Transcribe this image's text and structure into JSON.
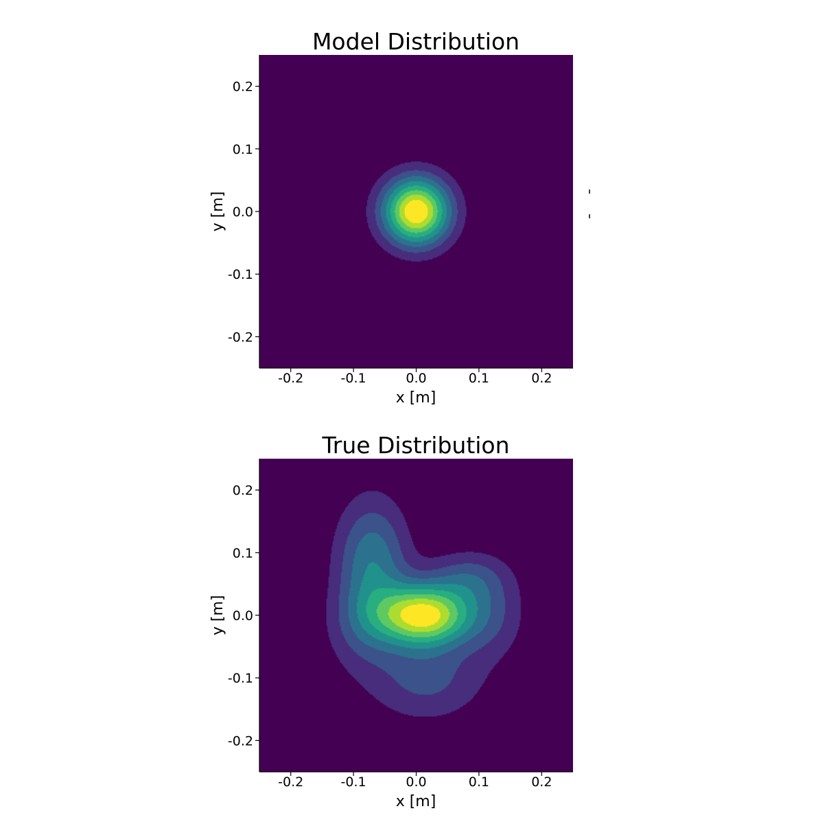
{
  "colors": {
    "background": "#ffffff",
    "levels": [
      "#440154",
      "#472d7b",
      "#3b528b",
      "#2c728e",
      "#21918c",
      "#28ae80",
      "#5ec962",
      "#addc30",
      "#fde725"
    ]
  },
  "chart_data": [
    {
      "type": "heatmap",
      "subtype": "filled-contour",
      "title": "Model Distribution",
      "xlabel": "x [m]",
      "ylabel": "y [m]",
      "xlim": [
        -0.25,
        0.25
      ],
      "ylim": [
        -0.25,
        0.25
      ],
      "xticks": [
        "-0.2",
        "-0.1",
        "0.0",
        "0.1",
        "0.2"
      ],
      "yticks": [
        "0.2",
        "0.1",
        "0.0",
        "-0.1",
        "-0.2"
      ],
      "colormap": "viridis",
      "components": [
        {
          "mean": [
            0.0,
            0.0
          ],
          "sigma": [
            0.038,
            0.038
          ],
          "weight": 1.0
        }
      ]
    },
    {
      "type": "heatmap",
      "subtype": "filled-contour",
      "title": "True Distribution",
      "xlabel": "x [m]",
      "ylabel": "y [m]",
      "xlim": [
        -0.25,
        0.25
      ],
      "ylim": [
        -0.25,
        0.25
      ],
      "xticks": [
        "-0.2",
        "-0.1",
        "0.0",
        "0.1",
        "0.2"
      ],
      "yticks": [
        "0.2",
        "0.1",
        "0.0",
        "-0.1",
        "-0.2"
      ],
      "colormap": "viridis",
      "components": [
        {
          "mean": [
            0.012,
            0.0
          ],
          "sigma": [
            0.052,
            0.034
          ],
          "weight": 1.0
        },
        {
          "mean": [
            -0.07,
            0.085
          ],
          "sigma": [
            0.04,
            0.07
          ],
          "weight": 0.45
        },
        {
          "mean": [
            0.015,
            -0.1
          ],
          "sigma": [
            0.065,
            0.048
          ],
          "weight": 0.28
        },
        {
          "mean": [
            0.08,
            0.06
          ],
          "sigma": [
            0.045,
            0.03
          ],
          "weight": 0.25
        },
        {
          "mean": [
            0.12,
            0.0
          ],
          "sigma": [
            0.04,
            0.05
          ],
          "weight": 0.2
        },
        {
          "mean": [
            -0.09,
            -0.02
          ],
          "sigma": [
            0.04,
            0.05
          ],
          "weight": 0.18
        }
      ]
    }
  ]
}
